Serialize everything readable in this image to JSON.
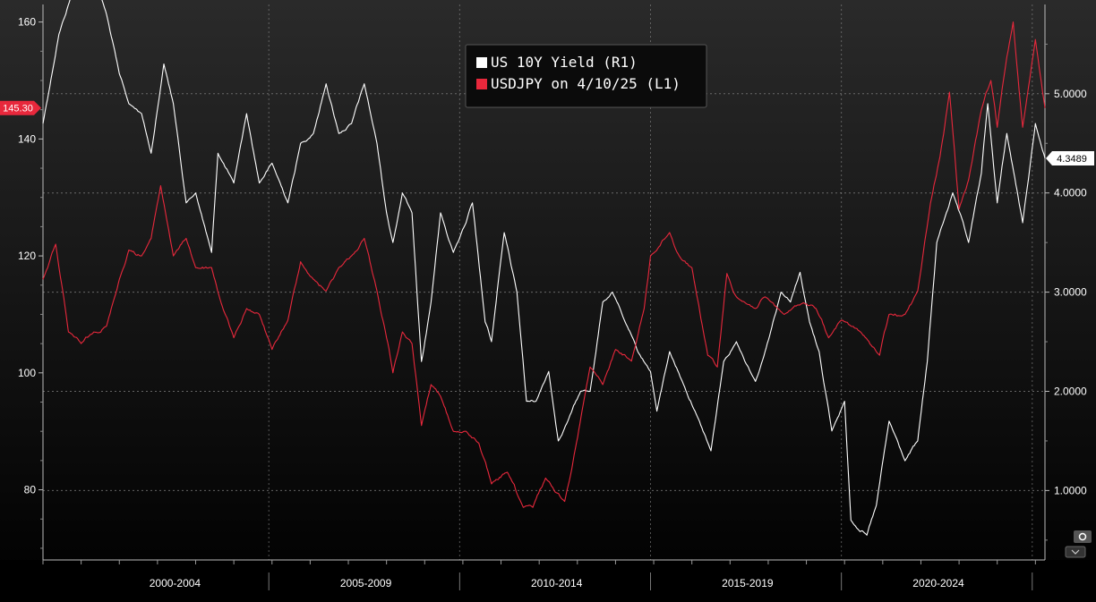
{
  "colors": {
    "background_top": "#2a2a2a",
    "background_bottom": "#000000",
    "yield_line": "#ffffff",
    "usdjpy_line": "#e8283c",
    "grid": "#8a8a8a",
    "axis_text": "#ffffff",
    "legend_bg": "#0b0b0b",
    "legend_border": "#555555"
  },
  "controls": {
    "settings_icon": "gear-icon",
    "dropdown_icon": "chevron-down-icon"
  },
  "chart_data": {
    "type": "line",
    "title": "",
    "legend": {
      "placement": "top-center",
      "entries": [
        {
          "label": "US 10Y Yield (R1)",
          "color": "#ffffff"
        },
        {
          "label": "USDJPY on 4/10/25 (L1)",
          "color": "#e8283c"
        }
      ]
    },
    "x_axis": {
      "range": [
        "1999-01",
        "2025-04"
      ],
      "period_labels": [
        {
          "label": "2000-2004",
          "start": "2000-01",
          "end": "2004-12"
        },
        {
          "label": "2005-2009",
          "start": "2005-01",
          "end": "2009-12"
        },
        {
          "label": "2010-2014",
          "start": "2010-01",
          "end": "2014-12"
        },
        {
          "label": "2015-2019",
          "start": "2015-01",
          "end": "2019-12"
        },
        {
          "label": "2020-2024",
          "start": "2020-01",
          "end": "2024-12"
        }
      ]
    },
    "y_left": {
      "range": [
        68,
        163
      ],
      "ticks": [
        80,
        100,
        120,
        140,
        160
      ],
      "tick_labels": [
        "80",
        "100",
        "120",
        "140",
        "160"
      ],
      "last_value_label": "145.30",
      "last_value": 145.3
    },
    "y_right": {
      "range": [
        0.3,
        5.9
      ],
      "ticks": [
        1,
        2,
        3,
        4,
        5
      ],
      "tick_labels": [
        "1.0000",
        "2.0000",
        "3.0000",
        "4.0000",
        "5.0000"
      ],
      "last_value_label": "4.3489",
      "last_value": 4.3489
    },
    "grid": true,
    "series": [
      {
        "name": "US 10Y Yield (R1)",
        "axis": "right",
        "color": "#ffffff",
        "x": [
          "1999-01",
          "1999-06",
          "1999-10",
          "2000-01",
          "2000-05",
          "2000-09",
          "2001-01",
          "2001-04",
          "2001-08",
          "2001-11",
          "2002-03",
          "2002-06",
          "2002-10",
          "2003-01",
          "2003-06",
          "2003-08",
          "2004-01",
          "2004-05",
          "2004-09",
          "2005-01",
          "2005-06",
          "2005-10",
          "2006-02",
          "2006-06",
          "2006-10",
          "2007-02",
          "2007-06",
          "2007-10",
          "2008-01",
          "2008-03",
          "2008-06",
          "2008-09",
          "2008-12",
          "2009-03",
          "2009-06",
          "2009-10",
          "2010-02",
          "2010-04",
          "2010-08",
          "2010-10",
          "2011-02",
          "2011-06",
          "2011-09",
          "2011-12",
          "2012-04",
          "2012-07",
          "2012-10",
          "2013-02",
          "2013-05",
          "2013-09",
          "2013-12",
          "2014-04",
          "2014-08",
          "2014-12",
          "2015-02",
          "2015-06",
          "2015-10",
          "2016-02",
          "2016-07",
          "2016-11",
          "2017-03",
          "2017-09",
          "2017-12",
          "2018-05",
          "2018-08",
          "2018-11",
          "2019-02",
          "2019-05",
          "2019-09",
          "2020-01",
          "2020-03",
          "2020-08",
          "2020-11",
          "2021-03",
          "2021-08",
          "2021-12",
          "2022-03",
          "2022-06",
          "2022-09",
          "2022-11",
          "2023-04",
          "2023-08",
          "2023-10",
          "2024-01",
          "2024-04",
          "2024-09",
          "2025-01",
          "2025-04"
        ],
        "values": [
          4.7,
          5.6,
          6.0,
          6.6,
          6.2,
          5.8,
          5.2,
          4.9,
          4.8,
          4.4,
          5.3,
          4.9,
          3.9,
          4.0,
          3.4,
          4.4,
          4.1,
          4.8,
          4.1,
          4.3,
          3.9,
          4.5,
          4.6,
          5.1,
          4.6,
          4.7,
          5.1,
          4.5,
          3.8,
          3.5,
          4.0,
          3.8,
          2.3,
          2.9,
          3.8,
          3.4,
          3.7,
          3.9,
          2.7,
          2.5,
          3.6,
          3.0,
          1.9,
          1.9,
          2.2,
          1.5,
          1.7,
          2.0,
          2.0,
          2.9,
          3.0,
          2.7,
          2.4,
          2.2,
          1.8,
          2.4,
          2.1,
          1.8,
          1.4,
          2.3,
          2.5,
          2.1,
          2.4,
          3.0,
          2.9,
          3.2,
          2.7,
          2.4,
          1.6,
          1.9,
          0.7,
          0.55,
          0.85,
          1.7,
          1.3,
          1.5,
          2.3,
          3.5,
          3.8,
          4.0,
          3.5,
          4.2,
          4.9,
          3.9,
          4.6,
          3.7,
          4.7,
          4.35
        ]
      },
      {
        "name": "USDJPY on 4/10/25 (L1)",
        "axis": "left",
        "color": "#e8283c",
        "x": [
          "1999-01",
          "1999-05",
          "1999-09",
          "2000-01",
          "2000-05",
          "2000-09",
          "2001-01",
          "2001-04",
          "2001-08",
          "2001-11",
          "2002-02",
          "2002-06",
          "2002-10",
          "2003-01",
          "2003-06",
          "2003-09",
          "2004-01",
          "2004-05",
          "2004-09",
          "2005-01",
          "2005-06",
          "2005-10",
          "2006-02",
          "2006-06",
          "2006-10",
          "2007-02",
          "2007-06",
          "2007-10",
          "2008-01",
          "2008-03",
          "2008-06",
          "2008-09",
          "2008-12",
          "2009-03",
          "2009-06",
          "2009-10",
          "2010-02",
          "2010-06",
          "2010-10",
          "2011-03",
          "2011-08",
          "2011-11",
          "2012-03",
          "2012-09",
          "2012-12",
          "2013-05",
          "2013-09",
          "2014-01",
          "2014-06",
          "2014-10",
          "2014-12",
          "2015-06",
          "2015-09",
          "2016-01",
          "2016-06",
          "2016-09",
          "2016-12",
          "2017-03",
          "2017-09",
          "2017-12",
          "2018-06",
          "2018-12",
          "2019-04",
          "2019-08",
          "2019-12",
          "2020-03",
          "2020-06",
          "2020-12",
          "2021-03",
          "2021-08",
          "2021-12",
          "2022-04",
          "2022-07",
          "2022-10",
          "2023-01",
          "2023-04",
          "2023-08",
          "2023-11",
          "2024-01",
          "2024-04",
          "2024-06",
          "2024-09",
          "2025-01",
          "2025-04"
        ],
        "values": [
          116,
          122,
          107,
          105,
          107,
          108,
          116,
          121,
          120,
          123,
          132,
          120,
          123,
          118,
          118,
          112,
          106,
          111,
          110,
          104,
          109,
          119,
          116,
          114,
          118,
          120,
          123,
          114,
          106,
          100,
          107,
          105,
          91,
          98,
          96,
          90,
          90,
          88,
          81,
          83,
          77,
          77,
          82,
          78,
          86,
          101,
          98,
          104,
          102,
          111,
          120,
          124,
          120,
          118,
          103,
          101,
          117,
          113,
          111,
          113,
          110,
          112,
          111,
          106,
          109,
          108,
          107,
          103,
          110,
          110,
          114,
          129,
          137,
          148,
          128,
          133,
          145,
          150,
          142,
          154,
          160,
          142,
          157,
          145.3
        ]
      }
    ]
  }
}
